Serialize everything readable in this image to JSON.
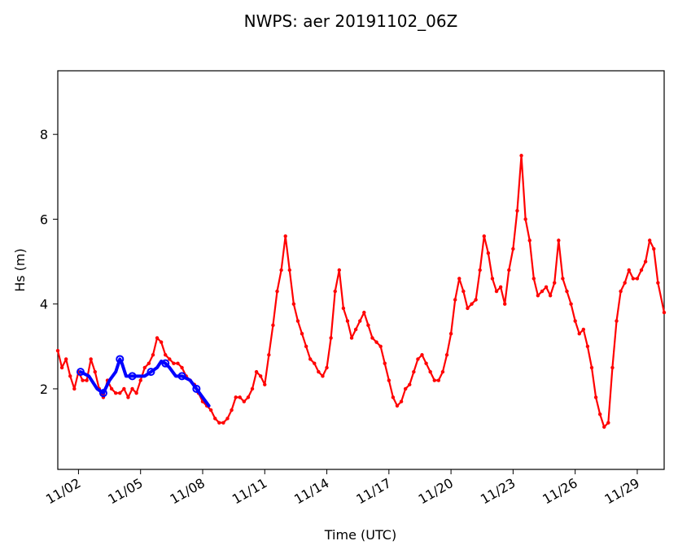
{
  "chart_data": {
    "type": "line",
    "title": "NWPS: aer 20191102_06Z",
    "xlabel": "Time (UTC)",
    "ylabel": "Hs (m)",
    "x_axis_type": "date (days offset from 11/01)",
    "xlim": [
      1.0,
      30.3
    ],
    "ylim": [
      0.1,
      9.5
    ],
    "x_ticks": [
      {
        "x": 2,
        "label": "11/02"
      },
      {
        "x": 5,
        "label": "11/05"
      },
      {
        "x": 8,
        "label": "11/08"
      },
      {
        "x": 11,
        "label": "11/11"
      },
      {
        "x": 14,
        "label": "11/14"
      },
      {
        "x": 17,
        "label": "11/17"
      },
      {
        "x": 20,
        "label": "11/20"
      },
      {
        "x": 23,
        "label": "11/23"
      },
      {
        "x": 26,
        "label": "11/26"
      },
      {
        "x": 29,
        "label": "11/29"
      }
    ],
    "y_ticks": [
      {
        "y": 2,
        "label": "2"
      },
      {
        "y": 4,
        "label": "4"
      },
      {
        "y": 6,
        "label": "6"
      },
      {
        "y": 8,
        "label": "8"
      }
    ],
    "grid": false,
    "series": [
      {
        "color": "#0000ff",
        "style": "thick line with open circle markers",
        "x": [
          2.1,
          2.5,
          2.9,
          3.2,
          3.5,
          3.8,
          4.0,
          4.1,
          4.3,
          4.6,
          4.9,
          5.2,
          5.5,
          5.8,
          6.0,
          6.2,
          6.4,
          6.7,
          7.0,
          7.2,
          7.4,
          7.7,
          8.0,
          8.3
        ],
        "y": [
          2.4,
          2.3,
          2.0,
          1.9,
          2.2,
          2.4,
          2.7,
          2.6,
          2.3,
          2.3,
          2.3,
          2.3,
          2.4,
          2.5,
          2.65,
          2.6,
          2.5,
          2.3,
          2.3,
          2.25,
          2.2,
          2.0,
          1.8,
          1.6
        ]
      },
      {
        "color": "#ff0000",
        "style": "line with small dot markers",
        "x": [
          1.0,
          1.2,
          1.4,
          1.6,
          1.8,
          2.0,
          2.2,
          2.4,
          2.6,
          2.8,
          3.0,
          3.2,
          3.4,
          3.6,
          3.8,
          4.0,
          4.2,
          4.4,
          4.6,
          4.8,
          5.0,
          5.2,
          5.4,
          5.6,
          5.8,
          6.0,
          6.2,
          6.4,
          6.6,
          6.8,
          7.0,
          7.2,
          7.4,
          7.6,
          7.8,
          8.0,
          8.2,
          8.4,
          8.6,
          8.8,
          9.0,
          9.2,
          9.4,
          9.6,
          9.8,
          10.0,
          10.2,
          10.4,
          10.6,
          10.8,
          11.0,
          11.2,
          11.4,
          11.6,
          11.8,
          12.0,
          12.2,
          12.4,
          12.6,
          12.8,
          13.0,
          13.2,
          13.4,
          13.6,
          13.8,
          14.0,
          14.2,
          14.4,
          14.6,
          14.8,
          15.0,
          15.2,
          15.4,
          15.6,
          15.8,
          16.0,
          16.2,
          16.4,
          16.6,
          16.8,
          17.0,
          17.2,
          17.4,
          17.6,
          17.8,
          18.0,
          18.2,
          18.4,
          18.6,
          18.8,
          19.0,
          19.2,
          19.4,
          19.6,
          19.8,
          20.0,
          20.2,
          20.4,
          20.6,
          20.8,
          21.0,
          21.2,
          21.4,
          21.6,
          21.8,
          22.0,
          22.2,
          22.4,
          22.6,
          22.8,
          23.0,
          23.2,
          23.4,
          23.6,
          23.8,
          24.0,
          24.2,
          24.4,
          24.6,
          24.8,
          25.0,
          25.2,
          25.4,
          25.6,
          25.8,
          26.0,
          26.2,
          26.4,
          26.6,
          26.8,
          27.0,
          27.2,
          27.4,
          27.6,
          27.8,
          28.0,
          28.2,
          28.4,
          28.6,
          28.8,
          29.0,
          29.2,
          29.4,
          29.6,
          29.8,
          30.0,
          30.3
        ],
        "y": [
          2.9,
          2.5,
          2.7,
          2.3,
          2.0,
          2.4,
          2.2,
          2.2,
          2.7,
          2.4,
          2.0,
          1.8,
          2.2,
          2.0,
          1.9,
          1.9,
          2.0,
          1.8,
          2.0,
          1.9,
          2.2,
          2.5,
          2.6,
          2.8,
          3.2,
          3.1,
          2.8,
          2.7,
          2.6,
          2.6,
          2.5,
          2.3,
          2.2,
          2.1,
          1.9,
          1.7,
          1.6,
          1.5,
          1.3,
          1.2,
          1.2,
          1.3,
          1.5,
          1.8,
          1.8,
          1.7,
          1.8,
          2.0,
          2.4,
          2.3,
          2.1,
          2.8,
          3.5,
          4.3,
          4.8,
          5.6,
          4.8,
          4.0,
          3.6,
          3.3,
          3.0,
          2.7,
          2.6,
          2.4,
          2.3,
          2.5,
          3.2,
          4.3,
          4.8,
          3.9,
          3.6,
          3.2,
          3.4,
          3.6,
          3.8,
          3.5,
          3.2,
          3.1,
          3.0,
          2.6,
          2.2,
          1.8,
          1.6,
          1.7,
          2.0,
          2.1,
          2.4,
          2.7,
          2.8,
          2.6,
          2.4,
          2.2,
          2.2,
          2.4,
          2.8,
          3.3,
          4.1,
          4.6,
          4.3,
          3.9,
          4.0,
          4.1,
          4.8,
          5.6,
          5.2,
          4.6,
          4.3,
          4.4,
          4.0,
          4.8,
          5.3,
          6.2,
          7.5,
          6.0,
          5.5,
          4.6,
          4.2,
          4.3,
          4.4,
          4.2,
          4.5,
          5.5,
          4.6,
          4.3,
          4.0,
          3.6,
          3.3,
          3.4,
          3.0,
          2.5,
          1.8,
          1.4,
          1.1,
          1.2,
          2.5,
          3.6,
          4.3,
          4.5,
          4.8,
          4.6,
          4.6,
          4.8,
          5.0,
          5.5,
          5.3,
          4.5,
          3.8
        ]
      }
    ]
  }
}
